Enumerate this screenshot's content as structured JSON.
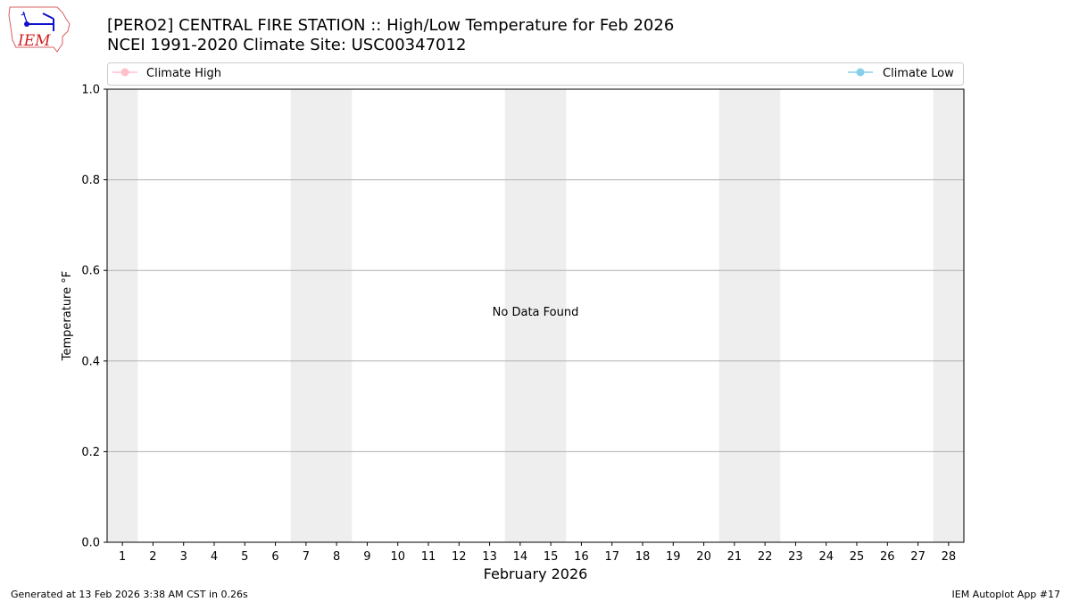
{
  "header": {
    "title_line1": "[PERO2] CENTRAL FIRE STATION :: High/Low Temperature for Feb 2026",
    "title_line2": "NCEI 1991-2020 Climate Site: USC00347012",
    "logo_text": "IEM"
  },
  "footer": {
    "generated": "Generated at 13 Feb 2026 3:38 AM CST in 0.26s",
    "app": "IEM Autoplot App #17"
  },
  "chart_data": {
    "type": "line",
    "title": "[PERO2] CENTRAL FIRE STATION :: High/Low Temperature for Feb 2026",
    "subtitle": "NCEI 1991-2020 Climate Site: USC00347012",
    "xlabel": "February 2026",
    "ylabel": "Temperature °F",
    "xlim": [
      0.5,
      28.5
    ],
    "ylim": [
      0,
      1
    ],
    "x_ticks": [
      1,
      2,
      3,
      4,
      5,
      6,
      7,
      8,
      9,
      10,
      11,
      12,
      13,
      14,
      15,
      16,
      17,
      18,
      19,
      20,
      21,
      22,
      23,
      24,
      25,
      26,
      27,
      28
    ],
    "y_ticks": [
      "0.0",
      "0.2",
      "0.4",
      "0.6",
      "0.8",
      "1.0"
    ],
    "y_tick_values": [
      0,
      0.2,
      0.4,
      0.6,
      0.8,
      1.0
    ],
    "grid": "horizontal",
    "weekend_shading_days": [
      1,
      7,
      8,
      14,
      15,
      21,
      22,
      28
    ],
    "shading_color": "#eeeeee",
    "annotation": "No Data Found",
    "legend_placement": "top (above plot)",
    "series": [
      {
        "name": "Climate High",
        "color": "#ffc0cb",
        "values": []
      },
      {
        "name": "Climate Low",
        "color": "#87ceeb",
        "values": []
      }
    ]
  }
}
